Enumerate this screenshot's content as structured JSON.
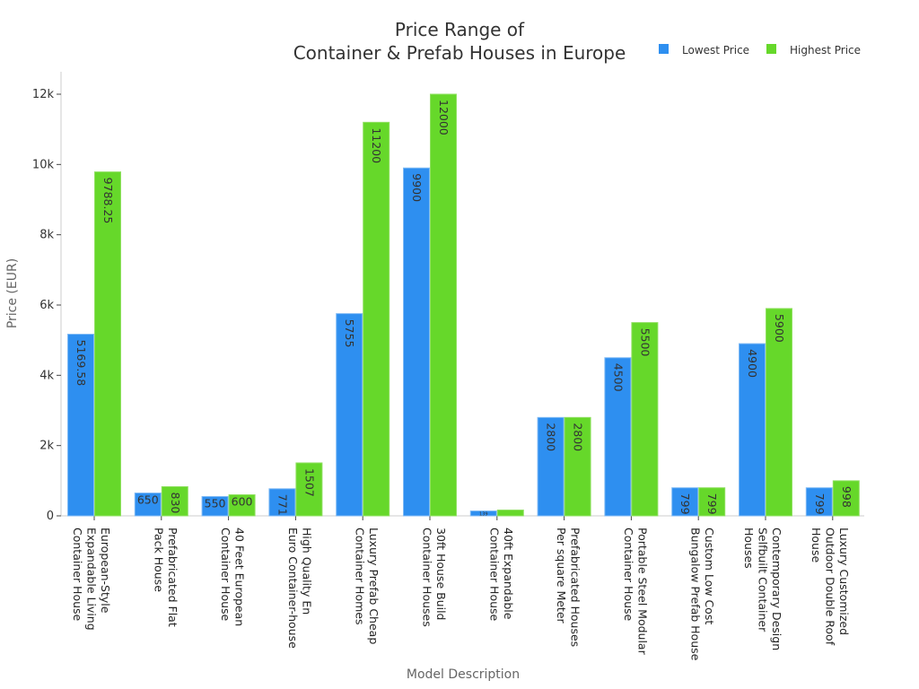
{
  "chart_data": {
    "type": "bar",
    "title": [
      "Price Range of",
      "Container & Prefab Houses in Europe"
    ],
    "xlabel": "Model Description",
    "ylabel": "Price (EUR)",
    "ylim": [
      0,
      12600
    ],
    "yticks": [
      0,
      2000,
      4000,
      6000,
      8000,
      10000,
      12000
    ],
    "ytick_labels": [
      "0",
      "2k",
      "4k",
      "6k",
      "8k",
      "10k",
      "12k"
    ],
    "legend_position": "top-right",
    "categories": [
      [
        "European-Style",
        "Expandable Living",
        "Container House"
      ],
      [
        "Prefabricated Flat",
        "Pack House"
      ],
      [
        "40 Feet European",
        "Container House"
      ],
      [
        "High Quality En",
        "Euro Container-house"
      ],
      [
        "Luxury Prefab Cheap",
        "Container Homes"
      ],
      [
        "30ft House Build",
        "Container Houses"
      ],
      [
        "40ft Expandable",
        "Container House"
      ],
      [
        "Prefabricated Houses",
        "Per square Meter"
      ],
      [
        "Portable Steel Modular",
        "Container House"
      ],
      [
        "Custom Low Cost",
        "Bungalow Prefab House"
      ],
      [
        "Contemporary Design",
        "Selfbuilt Container",
        "Houses"
      ],
      [
        "Luxury Customized",
        "Outdoor Double Roof",
        "House"
      ]
    ],
    "series": [
      {
        "name": "Lowest Price",
        "color": "#2e8ff0",
        "values": [
          5169.58,
          650,
          550,
          771,
          5755,
          9900,
          139,
          2800,
          4500,
          799,
          4900,
          799
        ],
        "labels": [
          "5169.58",
          "650",
          "550",
          "771",
          "5755",
          "9900",
          "139",
          "2800",
          "4500",
          "799",
          "4900",
          "799"
        ]
      },
      {
        "name": "Highest Price",
        "color": "#66d82a",
        "values": [
          9788.25,
          830,
          600,
          1507,
          11200,
          12000,
          165,
          2800,
          5500,
          799,
          5900,
          998
        ],
        "labels": [
          "9788.25",
          "830",
          "600",
          "1507",
          "11200",
          "12000",
          "",
          "2800",
          "5500",
          "799",
          "5900",
          "998"
        ]
      }
    ]
  }
}
